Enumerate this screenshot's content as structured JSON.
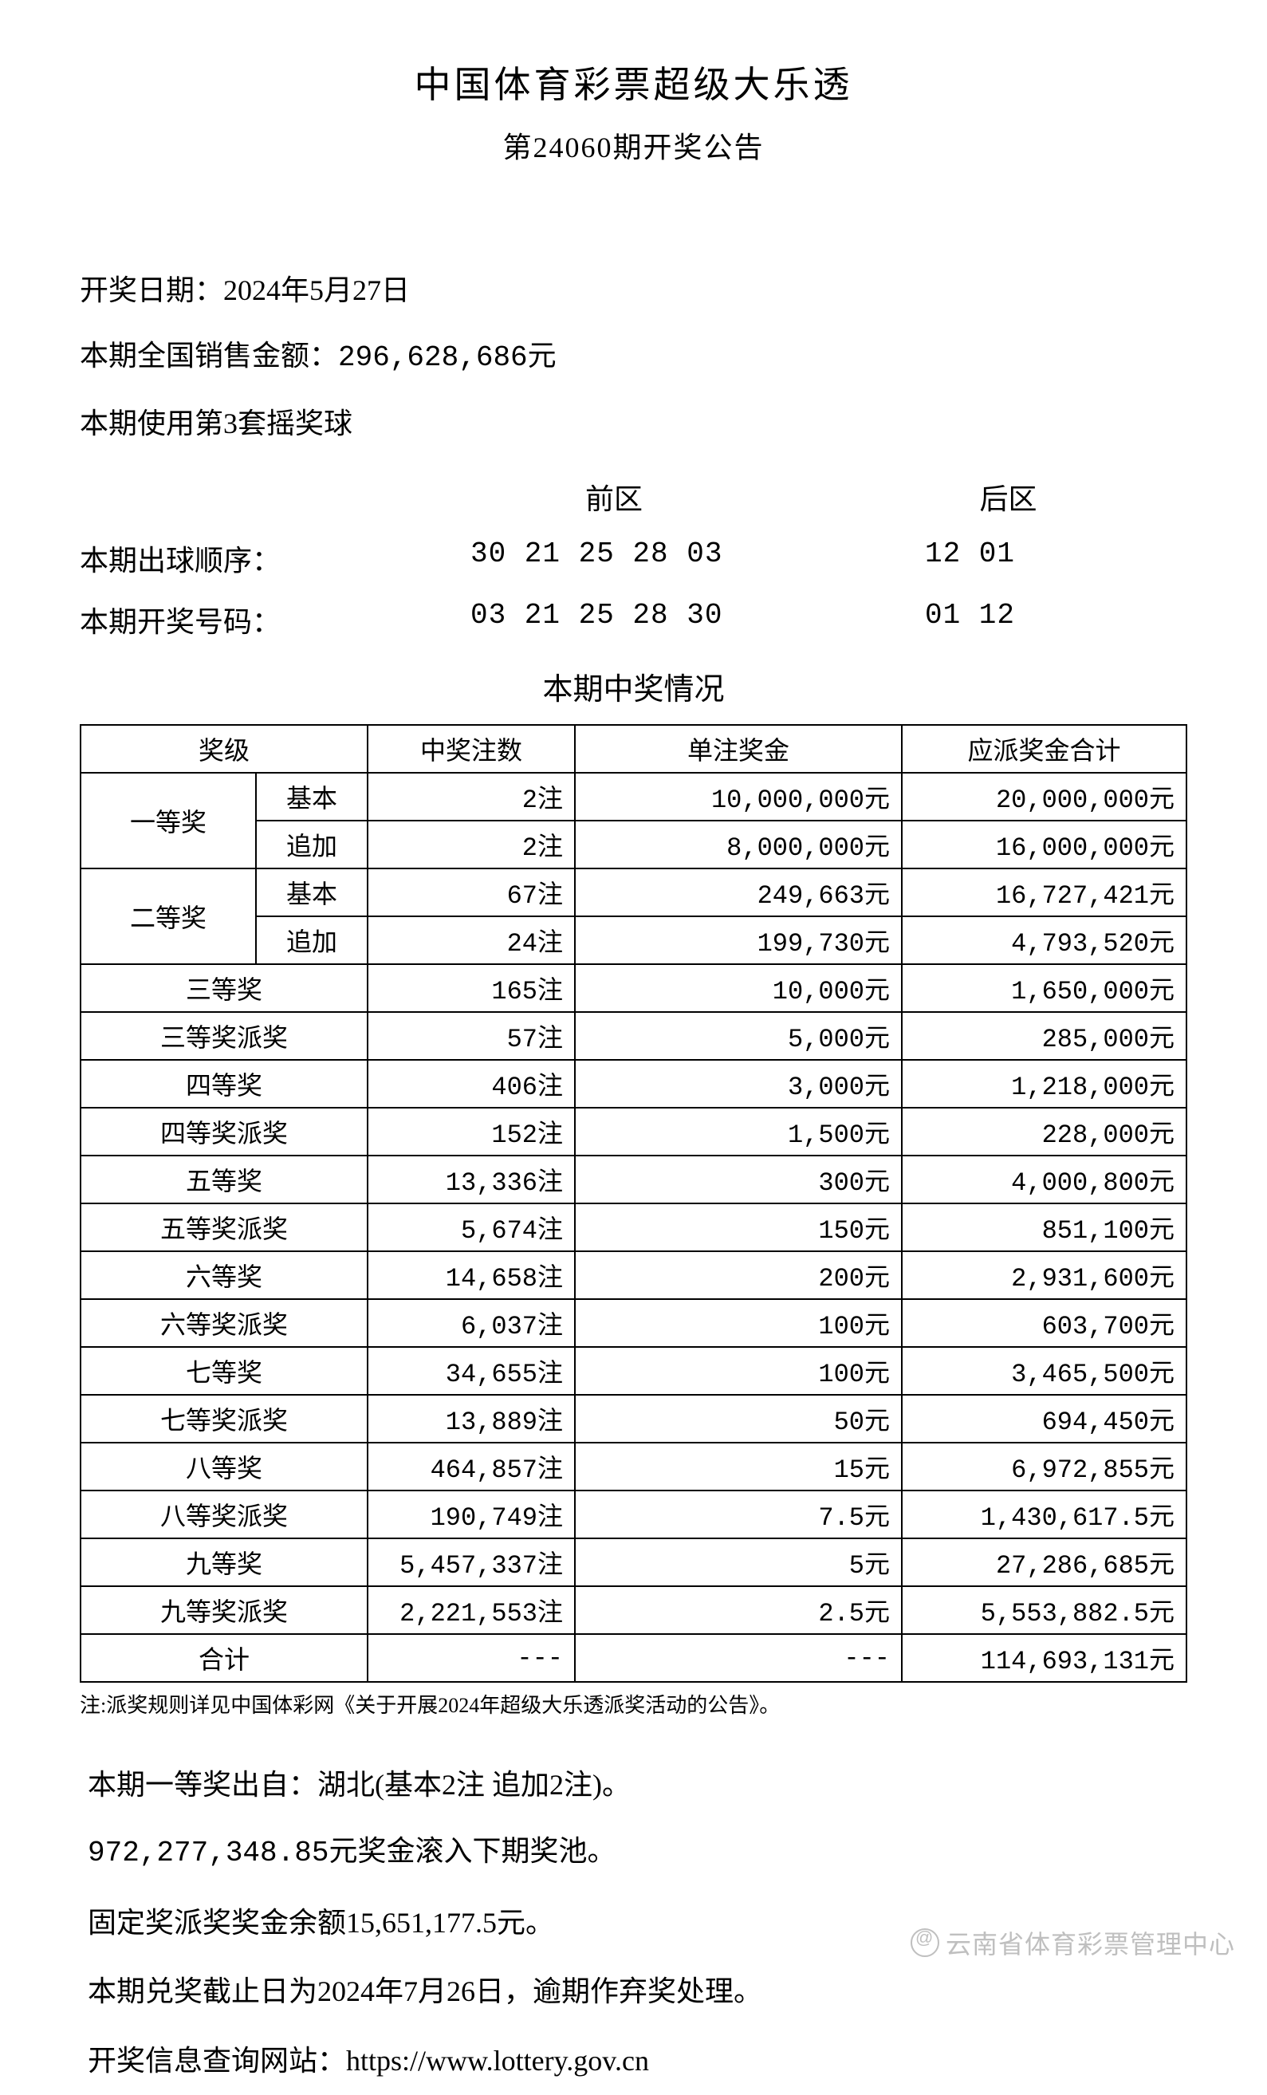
{
  "header": {
    "title": "中国体育彩票超级大乐透",
    "subtitle": "第24060期开奖公告"
  },
  "info": {
    "draw_date_label": "开奖日期：",
    "draw_date_value": "2024年5月27日",
    "sales_label": "本期全国销售金额：",
    "sales_value": "296,628,686元",
    "ballset": "本期使用第3套摇奖球"
  },
  "numbers": {
    "front_header": "前区",
    "back_header": "后区",
    "order_label": "本期出球顺序：",
    "order_front": "30 21 25 28 03",
    "order_back": "12 01",
    "winning_label": "本期开奖号码：",
    "winning_front": "03 21 25 28 30",
    "winning_back": "01 12"
  },
  "prize_section_title": "本期中奖情况",
  "table": {
    "headers": {
      "level": "奖级",
      "count": "中奖注数",
      "unit": "单注奖金",
      "total": "应派奖金合计"
    },
    "first": {
      "label": "一等奖",
      "basic_label": "基本",
      "basic_count": "2注",
      "basic_unit": "10,000,000元",
      "basic_total": "20,000,000元",
      "add_label": "追加",
      "add_count": "2注",
      "add_unit": "8,000,000元",
      "add_total": "16,000,000元"
    },
    "second": {
      "label": "二等奖",
      "basic_label": "基本",
      "basic_count": "67注",
      "basic_unit": "249,663元",
      "basic_total": "16,727,421元",
      "add_label": "追加",
      "add_count": "24注",
      "add_unit": "199,730元",
      "add_total": "4,793,520元"
    },
    "rows": [
      {
        "level": "三等奖",
        "count": "165注",
        "unit": "10,000元",
        "total": "1,650,000元"
      },
      {
        "level": "三等奖派奖",
        "count": "57注",
        "unit": "5,000元",
        "total": "285,000元"
      },
      {
        "level": "四等奖",
        "count": "406注",
        "unit": "3,000元",
        "total": "1,218,000元"
      },
      {
        "level": "四等奖派奖",
        "count": "152注",
        "unit": "1,500元",
        "total": "228,000元"
      },
      {
        "level": "五等奖",
        "count": "13,336注",
        "unit": "300元",
        "total": "4,000,800元"
      },
      {
        "level": "五等奖派奖",
        "count": "5,674注",
        "unit": "150元",
        "total": "851,100元"
      },
      {
        "level": "六等奖",
        "count": "14,658注",
        "unit": "200元",
        "total": "2,931,600元"
      },
      {
        "level": "六等奖派奖",
        "count": "6,037注",
        "unit": "100元",
        "total": "603,700元"
      },
      {
        "level": "七等奖",
        "count": "34,655注",
        "unit": "100元",
        "total": "3,465,500元"
      },
      {
        "level": "七等奖派奖",
        "count": "13,889注",
        "unit": "50元",
        "total": "694,450元"
      },
      {
        "level": "八等奖",
        "count": "464,857注",
        "unit": "15元",
        "total": "6,972,855元"
      },
      {
        "level": "八等奖派奖",
        "count": "190,749注",
        "unit": "7.5元",
        "total": "1,430,617.5元"
      },
      {
        "level": "九等奖",
        "count": "5,457,337注",
        "unit": "5元",
        "total": "27,286,685元"
      },
      {
        "level": "九等奖派奖",
        "count": "2,221,553注",
        "unit": "2.5元",
        "total": "5,553,882.5元"
      }
    ],
    "total_row": {
      "label": "合计",
      "count": "---",
      "unit": "---",
      "total": "114,693,131元"
    }
  },
  "footnote": "注:派奖规则详见中国体彩网《关于开展2024年超级大乐透派奖活动的公告》。",
  "bottom": {
    "line1": "本期一等奖出自：湖北(基本2注 追加2注)。",
    "line2": "972,277,348.85元奖金滚入下期奖池。",
    "line3": "固定奖派奖奖金余额15,651,177.5元。",
    "line4": "本期兑奖截止日为2024年7月26日，逾期作弃奖处理。",
    "line5": "开奖信息查询网站：https://www.lottery.gov.cn"
  },
  "watermark": "云南省体育彩票管理中心",
  "colors": {
    "text": "#000000",
    "background": "#ffffff",
    "border": "#000000",
    "watermark": "rgba(180,180,180,0.85)"
  }
}
